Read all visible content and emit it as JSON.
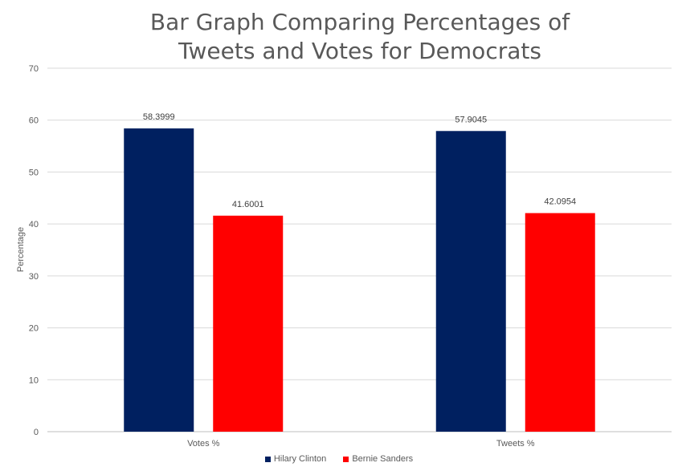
{
  "chart_data": {
    "type": "bar",
    "title": [
      "Bar Graph Comparing Percentages of",
      "Tweets and Votes for Democrats"
    ],
    "ylabel": "Percentage",
    "xlabel": "",
    "categories": [
      "Votes %",
      "Tweets %"
    ],
    "ylim": [
      0,
      70
    ],
    "yticks": [
      0,
      10,
      20,
      30,
      40,
      50,
      60,
      70
    ],
    "grid": true,
    "legend_position": "bottom",
    "series": [
      {
        "name": "Hilary Clinton",
        "color": "#002060",
        "values": [
          58.3999,
          57.9045
        ],
        "labels": [
          "58.3999",
          "57.9045"
        ]
      },
      {
        "name": "Bernie Sanders",
        "color": "#ff0000",
        "values": [
          41.6001,
          42.0954
        ],
        "labels": [
          "41.6001",
          "42.0954"
        ]
      }
    ]
  }
}
